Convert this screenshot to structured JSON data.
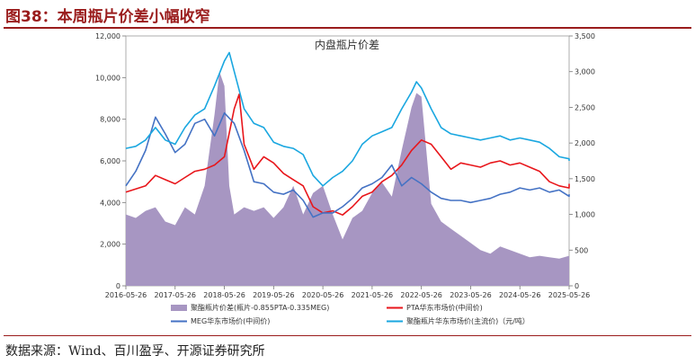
{
  "figure": {
    "title": "图38：本周瓶片价差小幅收窄",
    "source": "数据来源：Wind、百川盈孚、开源证券研究所"
  },
  "chart_data": {
    "type": "line",
    "title": "内盘瓶片价差",
    "x_ticks": [
      "2016-05-26",
      "2017-05-26",
      "2018-05-26",
      "2019-05-26",
      "2020-05-26",
      "2021-05-26",
      "2022-05-26",
      "2023-05-26",
      "2024-05-26",
      "2025-05-26"
    ],
    "y_left": {
      "ticks": [
        0,
        2000,
        4000,
        6000,
        8000,
        10000,
        12000
      ],
      "tick_labels": [
        "0",
        "2,000",
        "4,000",
        "6,000",
        "8,000",
        "10,000",
        "12,000"
      ],
      "range": [
        0,
        12000
      ]
    },
    "y_right": {
      "ticks": [
        0,
        500,
        1000,
        1500,
        2000,
        2500,
        3000,
        3500
      ],
      "tick_labels": [
        "0",
        "500",
        "1,000",
        "1,500",
        "2,000",
        "2,500",
        "3,000",
        "3,500"
      ],
      "range": [
        0,
        3500
      ]
    },
    "legend_position": "bottom",
    "series": [
      {
        "name": "聚酯瓶片价差(瓶片-0.855PTA-0.335MEG)",
        "axis": "right",
        "kind": "area",
        "color": "#a796c2",
        "x": [
          2016.4,
          2016.6,
          2016.8,
          2017.0,
          2017.2,
          2017.4,
          2017.6,
          2017.8,
          2018.0,
          2018.2,
          2018.3,
          2018.4,
          2018.5,
          2018.6,
          2018.8,
          2019.0,
          2019.2,
          2019.4,
          2019.6,
          2019.8,
          2020.0,
          2020.2,
          2020.4,
          2020.6,
          2020.8,
          2021.0,
          2021.2,
          2021.4,
          2021.6,
          2021.8,
          2022.0,
          2022.2,
          2022.3,
          2022.4,
          2022.6,
          2022.8,
          2023.0,
          2023.2,
          2023.4,
          2023.6,
          2023.8,
          2024.0,
          2024.2,
          2024.4,
          2024.6,
          2024.8,
          2025.0,
          2025.2,
          2025.4,
          2025.5
        ],
        "y": [
          1000,
          950,
          1050,
          1100,
          900,
          850,
          1100,
          1000,
          1400,
          2400,
          3000,
          2800,
          1400,
          1000,
          1100,
          1050,
          1100,
          950,
          1100,
          1400,
          1000,
          1300,
          1400,
          1000,
          650,
          950,
          1050,
          1300,
          1450,
          1250,
          1900,
          2500,
          2700,
          2650,
          1150,
          900,
          800,
          700,
          600,
          500,
          450,
          550,
          500,
          450,
          400,
          420,
          400,
          380,
          420,
          600
        ]
      },
      {
        "name": "PTA华东市场价(中间价)",
        "axis": "left",
        "kind": "line",
        "color": "#e8161b",
        "x": [
          2016.4,
          2016.6,
          2016.8,
          2017.0,
          2017.2,
          2017.4,
          2017.6,
          2017.8,
          2018.0,
          2018.2,
          2018.4,
          2018.6,
          2018.7,
          2018.8,
          2019.0,
          2019.2,
          2019.4,
          2019.6,
          2019.8,
          2020.0,
          2020.2,
          2020.4,
          2020.6,
          2020.8,
          2021.0,
          2021.2,
          2021.4,
          2021.6,
          2021.8,
          2022.0,
          2022.2,
          2022.4,
          2022.6,
          2022.8,
          2023.0,
          2023.2,
          2023.4,
          2023.6,
          2023.8,
          2024.0,
          2024.2,
          2024.4,
          2024.6,
          2024.8,
          2025.0,
          2025.2,
          2025.4,
          2025.5
        ],
        "y": [
          4500,
          4650,
          4800,
          5300,
          5100,
          4900,
          5200,
          5500,
          5600,
          5800,
          6200,
          8500,
          9200,
          6800,
          5600,
          6200,
          5900,
          5400,
          5100,
          4800,
          3800,
          3500,
          3600,
          3400,
          3800,
          4300,
          4500,
          5000,
          5300,
          5800,
          6500,
          7000,
          6800,
          6200,
          5600,
          5900,
          5800,
          5700,
          5900,
          6000,
          5800,
          5900,
          5700,
          5500,
          5000,
          4800,
          4700,
          4900
        ]
      },
      {
        "name": "MEG华东市场价(中间价)",
        "axis": "left",
        "kind": "line",
        "color": "#4472c4",
        "x": [
          2016.4,
          2016.6,
          2016.8,
          2017.0,
          2017.2,
          2017.4,
          2017.6,
          2017.8,
          2018.0,
          2018.2,
          2018.4,
          2018.6,
          2018.8,
          2019.0,
          2019.2,
          2019.4,
          2019.6,
          2019.8,
          2020.0,
          2020.2,
          2020.4,
          2020.6,
          2020.8,
          2021.0,
          2021.2,
          2021.4,
          2021.6,
          2021.8,
          2022.0,
          2022.2,
          2022.4,
          2022.6,
          2022.8,
          2023.0,
          2023.2,
          2023.4,
          2023.6,
          2023.8,
          2024.0,
          2024.2,
          2024.4,
          2024.6,
          2024.8,
          2025.0,
          2025.2,
          2025.4,
          2025.5
        ],
        "y": [
          4800,
          5500,
          6500,
          8100,
          7300,
          6400,
          6800,
          7800,
          8000,
          7200,
          8300,
          7800,
          6500,
          5000,
          4900,
          4500,
          4400,
          4600,
          4100,
          3300,
          3500,
          3500,
          3800,
          4200,
          4700,
          4900,
          5200,
          5800,
          4800,
          5200,
          4900,
          4500,
          4200,
          4100,
          4100,
          4000,
          4100,
          4200,
          4400,
          4500,
          4700,
          4600,
          4700,
          4500,
          4600,
          4300,
          4400
        ]
      },
      {
        "name": "聚酯瓶片华东市场价(主流价)（元/吨）",
        "axis": "left",
        "kind": "line",
        "color": "#1aa7e0",
        "x": [
          2016.4,
          2016.6,
          2016.8,
          2017.0,
          2017.2,
          2017.4,
          2017.6,
          2017.8,
          2018.0,
          2018.2,
          2018.4,
          2018.5,
          2018.6,
          2018.8,
          2019.0,
          2019.2,
          2019.4,
          2019.6,
          2019.8,
          2020.0,
          2020.2,
          2020.4,
          2020.6,
          2020.8,
          2021.0,
          2021.2,
          2021.4,
          2021.6,
          2021.8,
          2022.0,
          2022.2,
          2022.3,
          2022.4,
          2022.6,
          2022.8,
          2023.0,
          2023.2,
          2023.4,
          2023.6,
          2023.8,
          2024.0,
          2024.2,
          2024.4,
          2024.6,
          2024.8,
          2025.0,
          2025.2,
          2025.4,
          2025.5
        ],
        "y": [
          6600,
          6700,
          7000,
          7600,
          7000,
          6800,
          7600,
          8200,
          8500,
          9600,
          10800,
          11200,
          10300,
          8500,
          7800,
          7600,
          6900,
          6700,
          6600,
          6300,
          5300,
          4800,
          5200,
          5500,
          6000,
          6800,
          7200,
          7400,
          7600,
          8500,
          9300,
          9800,
          9500,
          8500,
          7600,
          7300,
          7200,
          7100,
          7000,
          7100,
          7200,
          7000,
          7100,
          7000,
          6900,
          6600,
          6200,
          6100,
          6000
        ]
      }
    ]
  }
}
